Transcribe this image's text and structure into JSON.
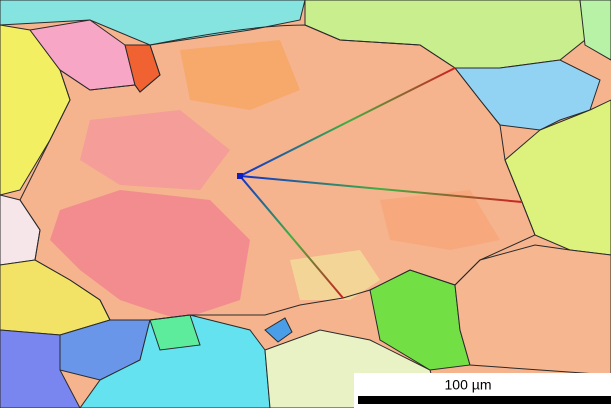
{
  "scale_bar": {
    "label": "100 µm"
  }
}
